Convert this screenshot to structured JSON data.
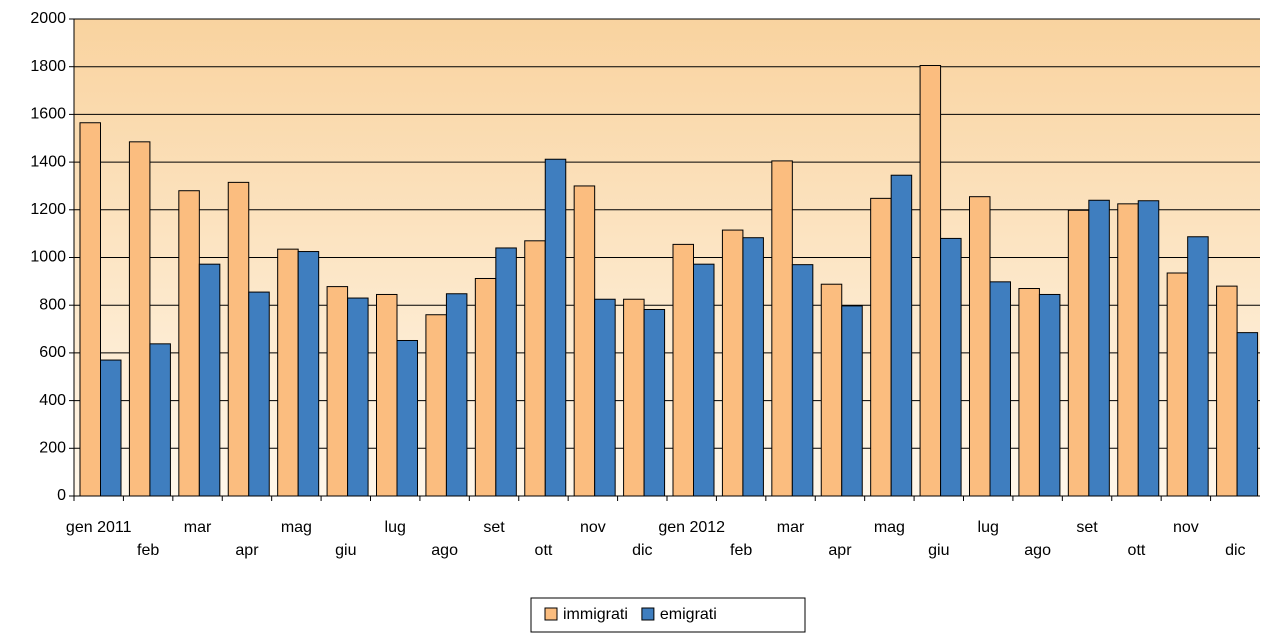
{
  "chart_data": {
    "type": "bar",
    "categories": [
      "gen 2011",
      "feb",
      "mar",
      "apr",
      "mag",
      "giu",
      "lug",
      "ago",
      "set",
      "ott",
      "nov",
      "dic",
      "gen 2012",
      "feb",
      "mar",
      "apr",
      "mag",
      "giu",
      "lug",
      "ago",
      "set",
      "ott",
      "nov",
      "dic"
    ],
    "series": [
      {
        "name": "immigrati",
        "color": "#fbbd7f",
        "values": [
          1565,
          1485,
          1280,
          1315,
          1035,
          878,
          845,
          760,
          912,
          1070,
          1300,
          825,
          1055,
          1115,
          1405,
          888,
          1248,
          1805,
          1255,
          870,
          1198,
          1225,
          935,
          880
        ]
      },
      {
        "name": "emigrati",
        "color": "#3f7ebf",
        "values": [
          570,
          638,
          972,
          855,
          1025,
          830,
          652,
          848,
          1040,
          1412,
          825,
          782,
          972,
          1083,
          970,
          797,
          1345,
          1080,
          898,
          845,
          1240,
          1238,
          1087,
          685
        ]
      }
    ],
    "ylim": [
      0,
      2000
    ],
    "yticks": [
      0,
      200,
      400,
      600,
      800,
      1000,
      1200,
      1400,
      1600,
      1800,
      2000
    ],
    "grid": true,
    "legend": "bottom"
  }
}
